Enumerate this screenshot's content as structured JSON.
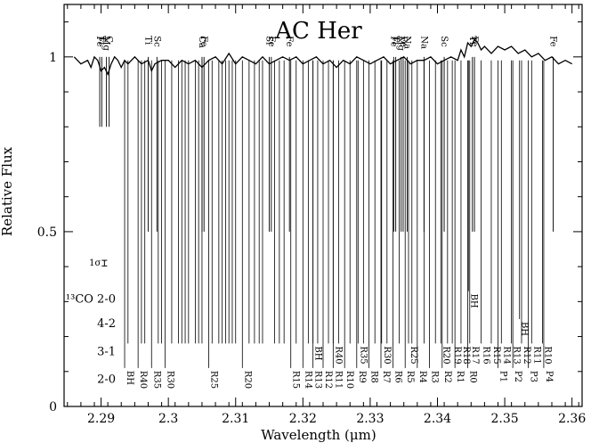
{
  "chart_data": {
    "type": "line",
    "title": "AC Her",
    "xlabel": "Wavelength (μm)",
    "ylabel": "Relative Flux",
    "xlim": [
      2.2845,
      2.3615
    ],
    "ylim": [
      0,
      1.15
    ],
    "xticks": [
      {
        "value": 2.29,
        "label": "2.29"
      },
      {
        "value": 2.3,
        "label": "2.3"
      },
      {
        "value": 2.31,
        "label": "2.31"
      },
      {
        "value": 2.32,
        "label": "2.32"
      },
      {
        "value": 2.33,
        "label": "2.33"
      },
      {
        "value": 2.34,
        "label": "2.34"
      },
      {
        "value": 2.35,
        "label": "2.35"
      },
      {
        "value": 2.36,
        "label": "2.36"
      }
    ],
    "yticks": [
      {
        "value": 0,
        "label": "0"
      },
      {
        "value": 0.5,
        "label": "0.5"
      },
      {
        "value": 1,
        "label": "1"
      }
    ],
    "spectrum": {
      "x": [
        2.286,
        2.287,
        2.288,
        2.2885,
        2.289,
        2.2895,
        2.29,
        2.2905,
        2.291,
        2.2915,
        2.292,
        2.2925,
        2.293,
        2.2935,
        2.294,
        2.2945,
        2.295,
        2.296,
        2.297,
        2.2975,
        2.298,
        2.299,
        2.3,
        2.301,
        2.302,
        2.303,
        2.304,
        2.305,
        2.306,
        2.307,
        2.308,
        2.309,
        2.31,
        2.311,
        2.312,
        2.313,
        2.314,
        2.315,
        2.316,
        2.317,
        2.318,
        2.319,
        2.32,
        2.321,
        2.322,
        2.323,
        2.324,
        2.325,
        2.326,
        2.327,
        2.328,
        2.329,
        2.33,
        2.331,
        2.332,
        2.333,
        2.334,
        2.335,
        2.336,
        2.337,
        2.338,
        2.339,
        2.34,
        2.341,
        2.342,
        2.343,
        2.3435,
        2.344,
        2.3445,
        2.345,
        2.3455,
        2.346,
        2.3465,
        2.347,
        2.348,
        2.349,
        2.35,
        2.351,
        2.352,
        2.353,
        2.354,
        2.355,
        2.356,
        2.357,
        2.358,
        2.359,
        2.36
      ],
      "y": [
        1.0,
        0.98,
        0.99,
        0.97,
        1.0,
        0.99,
        0.96,
        0.97,
        0.95,
        0.98,
        1.0,
        0.99,
        0.97,
        0.99,
        0.98,
        0.99,
        1.0,
        0.98,
        0.99,
        0.96,
        0.98,
        0.99,
        0.99,
        0.97,
        0.99,
        0.98,
        0.99,
        0.97,
        0.99,
        1.0,
        0.98,
        1.01,
        0.98,
        1.0,
        0.99,
        0.98,
        1.0,
        0.98,
        0.99,
        1.0,
        0.99,
        1.0,
        0.98,
        0.99,
        1.0,
        0.98,
        0.99,
        0.97,
        0.99,
        0.98,
        1.0,
        0.99,
        0.98,
        0.99,
        1.0,
        0.98,
        0.99,
        1.0,
        0.98,
        0.99,
        0.99,
        1.0,
        0.98,
        0.99,
        1.0,
        0.99,
        1.02,
        1.0,
        1.04,
        1.03,
        1.05,
        1.04,
        1.02,
        1.03,
        1.01,
        1.03,
        1.02,
        1.03,
        1.01,
        1.02,
        1.0,
        1.01,
        0.99,
        1.0,
        0.98,
        0.99,
        0.98
      ]
    },
    "rows": [
      {
        "label": "2-0",
        "y": 0.08
      },
      {
        "label": "3-1",
        "y": 0.16
      },
      {
        "label": "4-2",
        "y": 0.24
      },
      {
        "label": "¹³CO 2-0",
        "y": 0.31
      }
    ],
    "sigma_label": "1σ",
    "sigma_bar": {
      "x": 2.2905,
      "y": 0.41,
      "half": 0.008
    },
    "lines_2_0": [
      {
        "x": 2.2935,
        "label": "BH"
      },
      {
        "x": 2.2955,
        "label": "R40"
      },
      {
        "x": 2.2975,
        "label": "R35"
      },
      {
        "x": 2.2995,
        "label": "R30"
      },
      {
        "x": 2.306,
        "label": "R25"
      },
      {
        "x": 2.311,
        "label": "R20"
      },
      {
        "x": 2.3182,
        "label": "R15"
      },
      {
        "x": 2.32,
        "label": "R14"
      },
      {
        "x": 2.3215,
        "label": "R13"
      },
      {
        "x": 2.323,
        "label": "R12"
      },
      {
        "x": 2.3245,
        "label": "R11"
      },
      {
        "x": 2.3262,
        "label": "R10"
      },
      {
        "x": 2.328,
        "label": "R9"
      },
      {
        "x": 2.3298,
        "label": "R8"
      },
      {
        "x": 2.3316,
        "label": "R7"
      },
      {
        "x": 2.3334,
        "label": "R6"
      },
      {
        "x": 2.3352,
        "label": "R5"
      },
      {
        "x": 2.337,
        "label": "R4"
      },
      {
        "x": 2.3388,
        "label": "R3"
      },
      {
        "x": 2.3407,
        "label": "R2"
      },
      {
        "x": 2.3426,
        "label": "R1"
      },
      {
        "x": 2.3445,
        "label": "R0"
      },
      {
        "x": 2.349,
        "label": "P1"
      },
      {
        "x": 2.3512,
        "label": "P2"
      },
      {
        "x": 2.3535,
        "label": "P3"
      },
      {
        "x": 2.3558,
        "label": "P4"
      }
    ],
    "lines_3_1": [
      {
        "x": 2.3215,
        "label": "BH"
      },
      {
        "x": 2.3245,
        "label": "R40"
      },
      {
        "x": 2.3282,
        "label": "R35"
      },
      {
        "x": 2.3317,
        "label": "R30"
      },
      {
        "x": 2.3357,
        "label": "R25"
      },
      {
        "x": 2.3405,
        "label": "R20"
      },
      {
        "x": 2.3422,
        "label": "R19"
      },
      {
        "x": 2.3435,
        "label": "R18"
      },
      {
        "x": 2.3448,
        "label": "R17"
      },
      {
        "x": 2.3465,
        "label": "R16"
      },
      {
        "x": 2.348,
        "label": "R15"
      },
      {
        "x": 2.3495,
        "label": "R14"
      },
      {
        "x": 2.351,
        "label": "R13"
      },
      {
        "x": 2.3525,
        "label": "R12"
      },
      {
        "x": 2.354,
        "label": "R11"
      },
      {
        "x": 2.3556,
        "label": "R10"
      }
    ],
    "lines_4_2": [
      {
        "x": 2.3522,
        "label": "BH"
      }
    ],
    "lines_13co": [
      {
        "x": 2.3446,
        "label": "BH"
      }
    ],
    "extra_lines": [
      2.294,
      2.296,
      2.2965,
      2.2985,
      2.299,
      2.3005,
      2.3015,
      2.302,
      2.3025,
      2.303,
      2.304,
      2.3045,
      2.305,
      2.3065,
      2.3075,
      2.308,
      2.3085,
      2.309,
      2.3095,
      2.31,
      2.312,
      2.3128,
      2.3135,
      2.314,
      2.3158,
      2.3165,
      2.3172,
      2.319,
      2.3208,
      2.3222,
      2.3238,
      2.3253,
      2.327,
      2.329,
      2.3307,
      2.3325,
      2.3343,
      2.3362,
      2.338,
      2.3397,
      2.3415
    ],
    "atomic_lines": [
      {
        "x": 2.2898,
        "label": "Fe",
        "bottom": 0.8
      },
      {
        "x": 2.2901,
        "label": "Ti",
        "bottom": 0.8
      },
      {
        "x": 2.2908,
        "label": "Mg",
        "bottom": 0.8
      },
      {
        "x": 2.2912,
        "label": "C",
        "bottom": 0.8
      },
      {
        "x": 2.297,
        "label": "Ti",
        "bottom": 0.5
      },
      {
        "x": 2.2983,
        "label": "Sc",
        "bottom": 0.5
      },
      {
        "x": 2.305,
        "label": "Ca",
        "bottom": 0.5
      },
      {
        "x": 2.3053,
        "label": "Fe",
        "bottom": 0.5
      },
      {
        "x": 2.315,
        "label": "Si",
        "bottom": 0.5
      },
      {
        "x": 2.3153,
        "label": "Fe",
        "bottom": 0.5
      },
      {
        "x": 2.318,
        "label": "Fe",
        "bottom": 0.5
      },
      {
        "x": 2.3335,
        "label": "Fe",
        "bottom": 0.5
      },
      {
        "x": 2.3338,
        "label": "Ti",
        "bottom": 0.5
      },
      {
        "x": 2.3346,
        "label": "Mg",
        "bottom": 0.5
      },
      {
        "x": 2.3349,
        "label": "Fe",
        "bottom": 0.5
      },
      {
        "x": 2.3355,
        "label": "Na",
        "bottom": 0.5
      },
      {
        "x": 2.338,
        "label": "Na",
        "bottom": 0.5
      },
      {
        "x": 2.341,
        "label": "Sc",
        "bottom": 0.5
      },
      {
        "x": 2.3452,
        "label": "Ti",
        "bottom": 0.5
      },
      {
        "x": 2.3455,
        "label": "Fe",
        "bottom": 0.5
      },
      {
        "x": 2.3572,
        "label": "Fe",
        "bottom": 0.5
      }
    ]
  }
}
